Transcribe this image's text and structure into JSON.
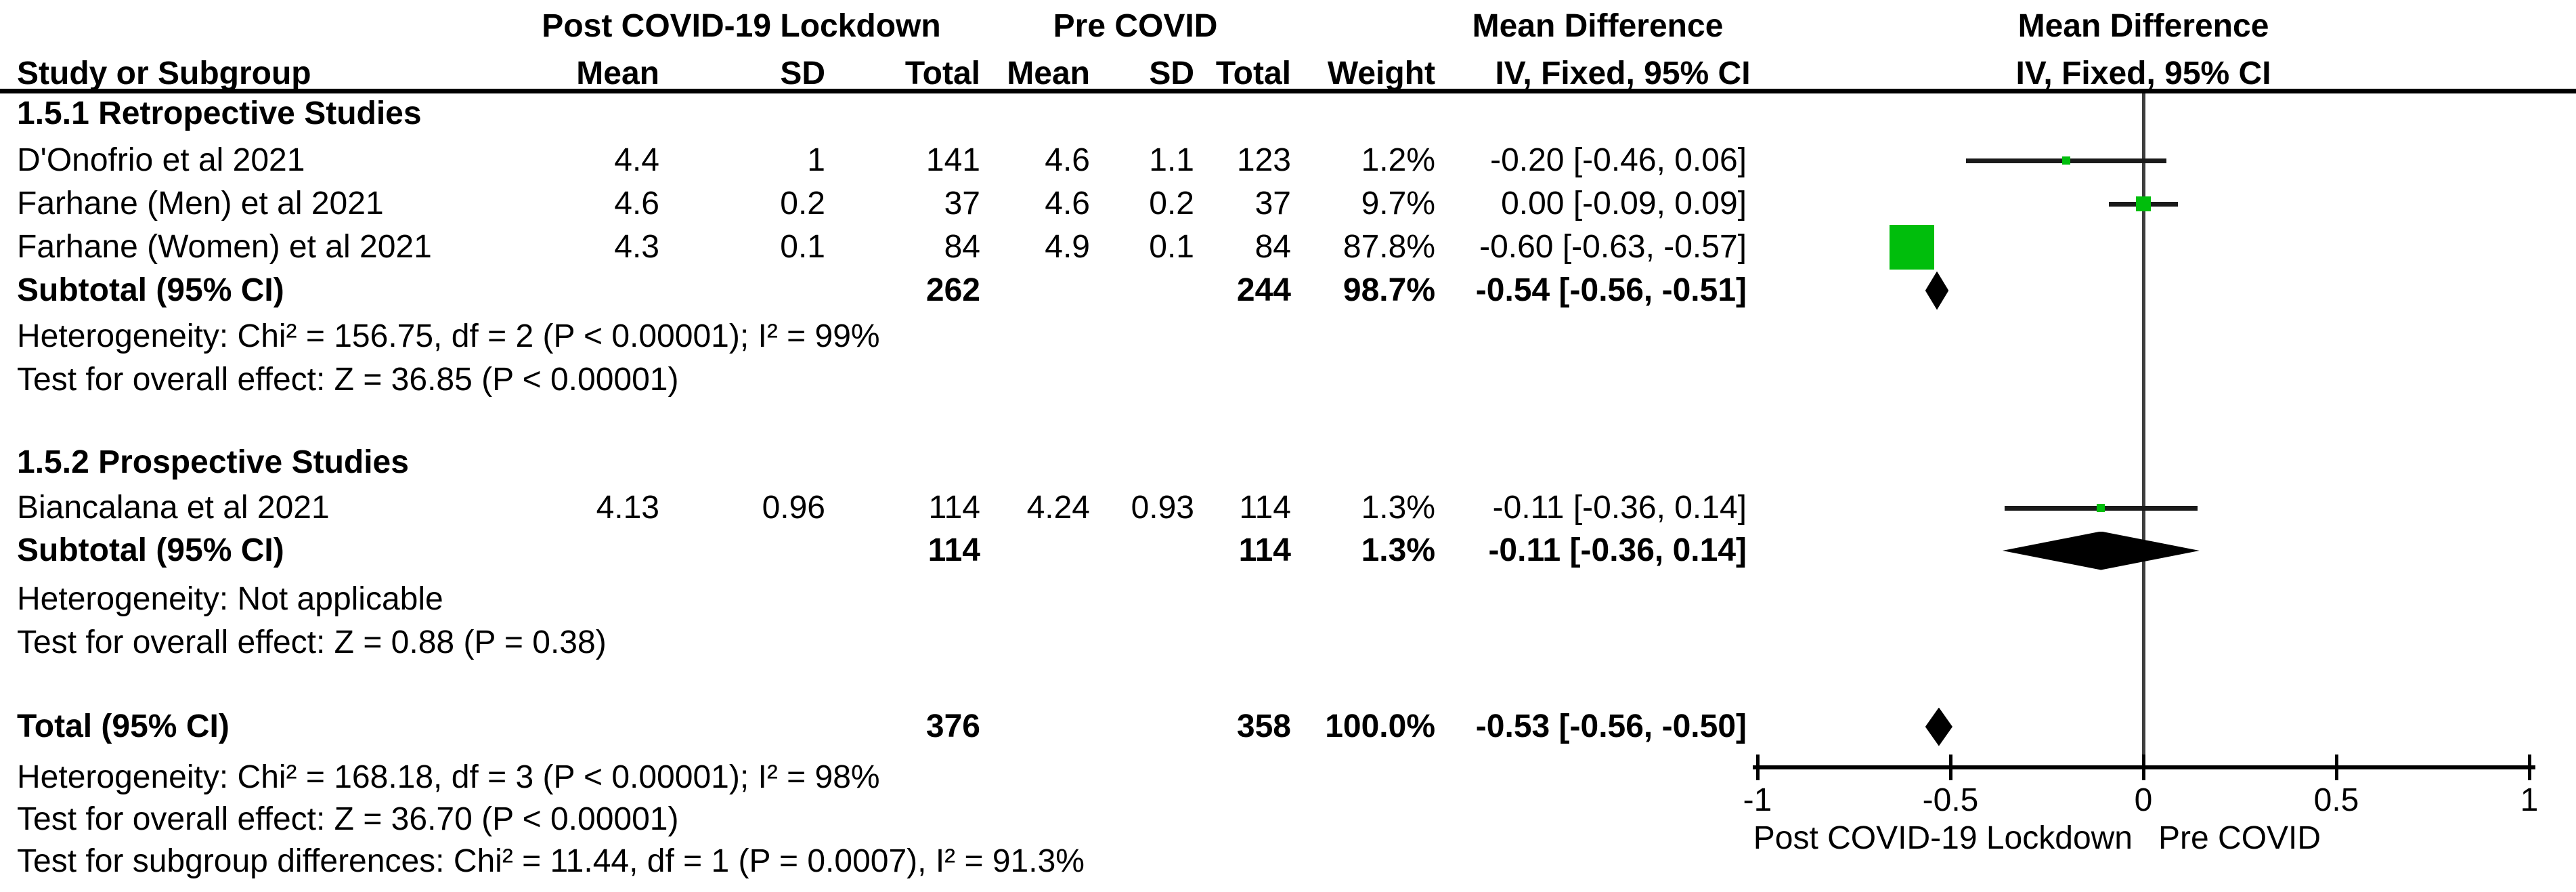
{
  "header": {
    "group1": "Post COVID-19 Lockdown",
    "group2": "Pre COVID",
    "effect1": "Mean Difference",
    "effect2": "Mean Difference",
    "study_col": "Study or Subgroup",
    "sub_cols": [
      "Mean",
      "SD",
      "Total",
      "Mean",
      "SD",
      "Total",
      "Weight"
    ],
    "effect_sub1": "IV, Fixed, 95% CI",
    "effect_sub2": "IV, Fixed, 95% CI"
  },
  "rows": [
    {
      "type": "section",
      "label": "1.5.1 Retropective Studies"
    },
    {
      "type": "study",
      "label": "D'Onofrio et al 2021",
      "mean1": "4.4",
      "sd1": "1",
      "total1": "141",
      "mean2": "4.6",
      "sd2": "1.1",
      "total2": "123",
      "weight": "1.2%",
      "ci": "-0.20 [-0.46, 0.06]"
    },
    {
      "type": "study",
      "label": "Farhane (Men) et al 2021",
      "mean1": "4.6",
      "sd1": "0.2",
      "total1": "37",
      "mean2": "4.6",
      "sd2": "0.2",
      "total2": "37",
      "weight": "9.7%",
      "ci": "0.00 [-0.09, 0.09]"
    },
    {
      "type": "study",
      "label": "Farhane (Women) et al 2021",
      "mean1": "4.3",
      "sd1": "0.1",
      "total1": "84",
      "mean2": "4.9",
      "sd2": "0.1",
      "total2": "84",
      "weight": "87.8%",
      "ci": "-0.60 [-0.63, -0.57]"
    },
    {
      "type": "subtotal",
      "label": "Subtotal (95% CI)",
      "total1": "262",
      "total2": "244",
      "weight": "98.7%",
      "ci": "-0.54 [-0.56, -0.51]"
    },
    {
      "type": "note",
      "label": "Heterogeneity: Chi² = 156.75, df = 2 (P < 0.00001); I² = 99%"
    },
    {
      "type": "note",
      "label": "Test for overall effect: Z = 36.85 (P < 0.00001)"
    },
    {
      "type": "section",
      "label": "1.5.2 Prospective Studies"
    },
    {
      "type": "study",
      "label": "Biancalana et al 2021",
      "mean1": "4.13",
      "sd1": "0.96",
      "total1": "114",
      "mean2": "4.24",
      "sd2": "0.93",
      "total2": "114",
      "weight": "1.3%",
      "ci": "-0.11 [-0.36, 0.14]"
    },
    {
      "type": "subtotal",
      "label": "Subtotal (95% CI)",
      "total1": "114",
      "total2": "114",
      "weight": "1.3%",
      "ci": "-0.11 [-0.36, 0.14]"
    },
    {
      "type": "note",
      "label": "Heterogeneity: Not applicable"
    },
    {
      "type": "note",
      "label": "Test for overall effect: Z = 0.88 (P = 0.38)"
    },
    {
      "type": "total",
      "label": "Total (95% CI)",
      "total1": "376",
      "total2": "358",
      "weight": "100.0%",
      "ci": "-0.53 [-0.56, -0.50]"
    },
    {
      "type": "note",
      "label": "Heterogeneity: Chi² = 168.18, df = 3 (P < 0.00001); I² = 98%"
    },
    {
      "type": "note",
      "label": "Test for overall effect: Z = 36.70 (P < 0.00001)"
    },
    {
      "type": "note",
      "label": "Test for subgroup differences: Chi² = 11.44, df = 1 (P = 0.0007), I² = 91.3%"
    }
  ],
  "chart_data": {
    "type": "forest",
    "effect_measure": "Mean Difference, IV, Fixed, 95% CI",
    "axis": {
      "min": -1,
      "max": 1,
      "ticks": [
        -1,
        -0.5,
        0,
        0.5,
        1
      ],
      "tick_labels": [
        "-1",
        "-0.5",
        "0",
        "0.5",
        "1"
      ]
    },
    "studies": [
      {
        "name": "D'Onofrio et al 2021",
        "group": "1.5.1 Retropective Studies",
        "est": -0.2,
        "lo": -0.46,
        "hi": 0.06,
        "weight": 1.2
      },
      {
        "name": "Farhane (Men) et al 2021",
        "group": "1.5.1 Retropective Studies",
        "est": 0.0,
        "lo": -0.09,
        "hi": 0.09,
        "weight": 9.7
      },
      {
        "name": "Farhane (Women) et al 2021",
        "group": "1.5.1 Retropective Studies",
        "est": -0.6,
        "lo": -0.63,
        "hi": -0.57,
        "weight": 87.8
      },
      {
        "name": "Biancalana et al 2021",
        "group": "1.5.2 Prospective Studies",
        "est": -0.11,
        "lo": -0.36,
        "hi": 0.14,
        "weight": 1.3
      }
    ],
    "summaries": [
      {
        "name": "Subtotal 1.5.1 (95% CI)",
        "est": -0.54,
        "lo": -0.56,
        "hi": -0.51
      },
      {
        "name": "Subtotal 1.5.2 (95% CI)",
        "est": -0.11,
        "lo": -0.36,
        "hi": 0.14
      },
      {
        "name": "Total (95% CI)",
        "est": -0.53,
        "lo": -0.56,
        "hi": -0.5
      }
    ],
    "marker_color": "#00be0c",
    "xlabel_left": "Post COVID-19 Lockdown",
    "xlabel_right": "Pre COVID",
    "grid": false,
    "legend": false
  }
}
